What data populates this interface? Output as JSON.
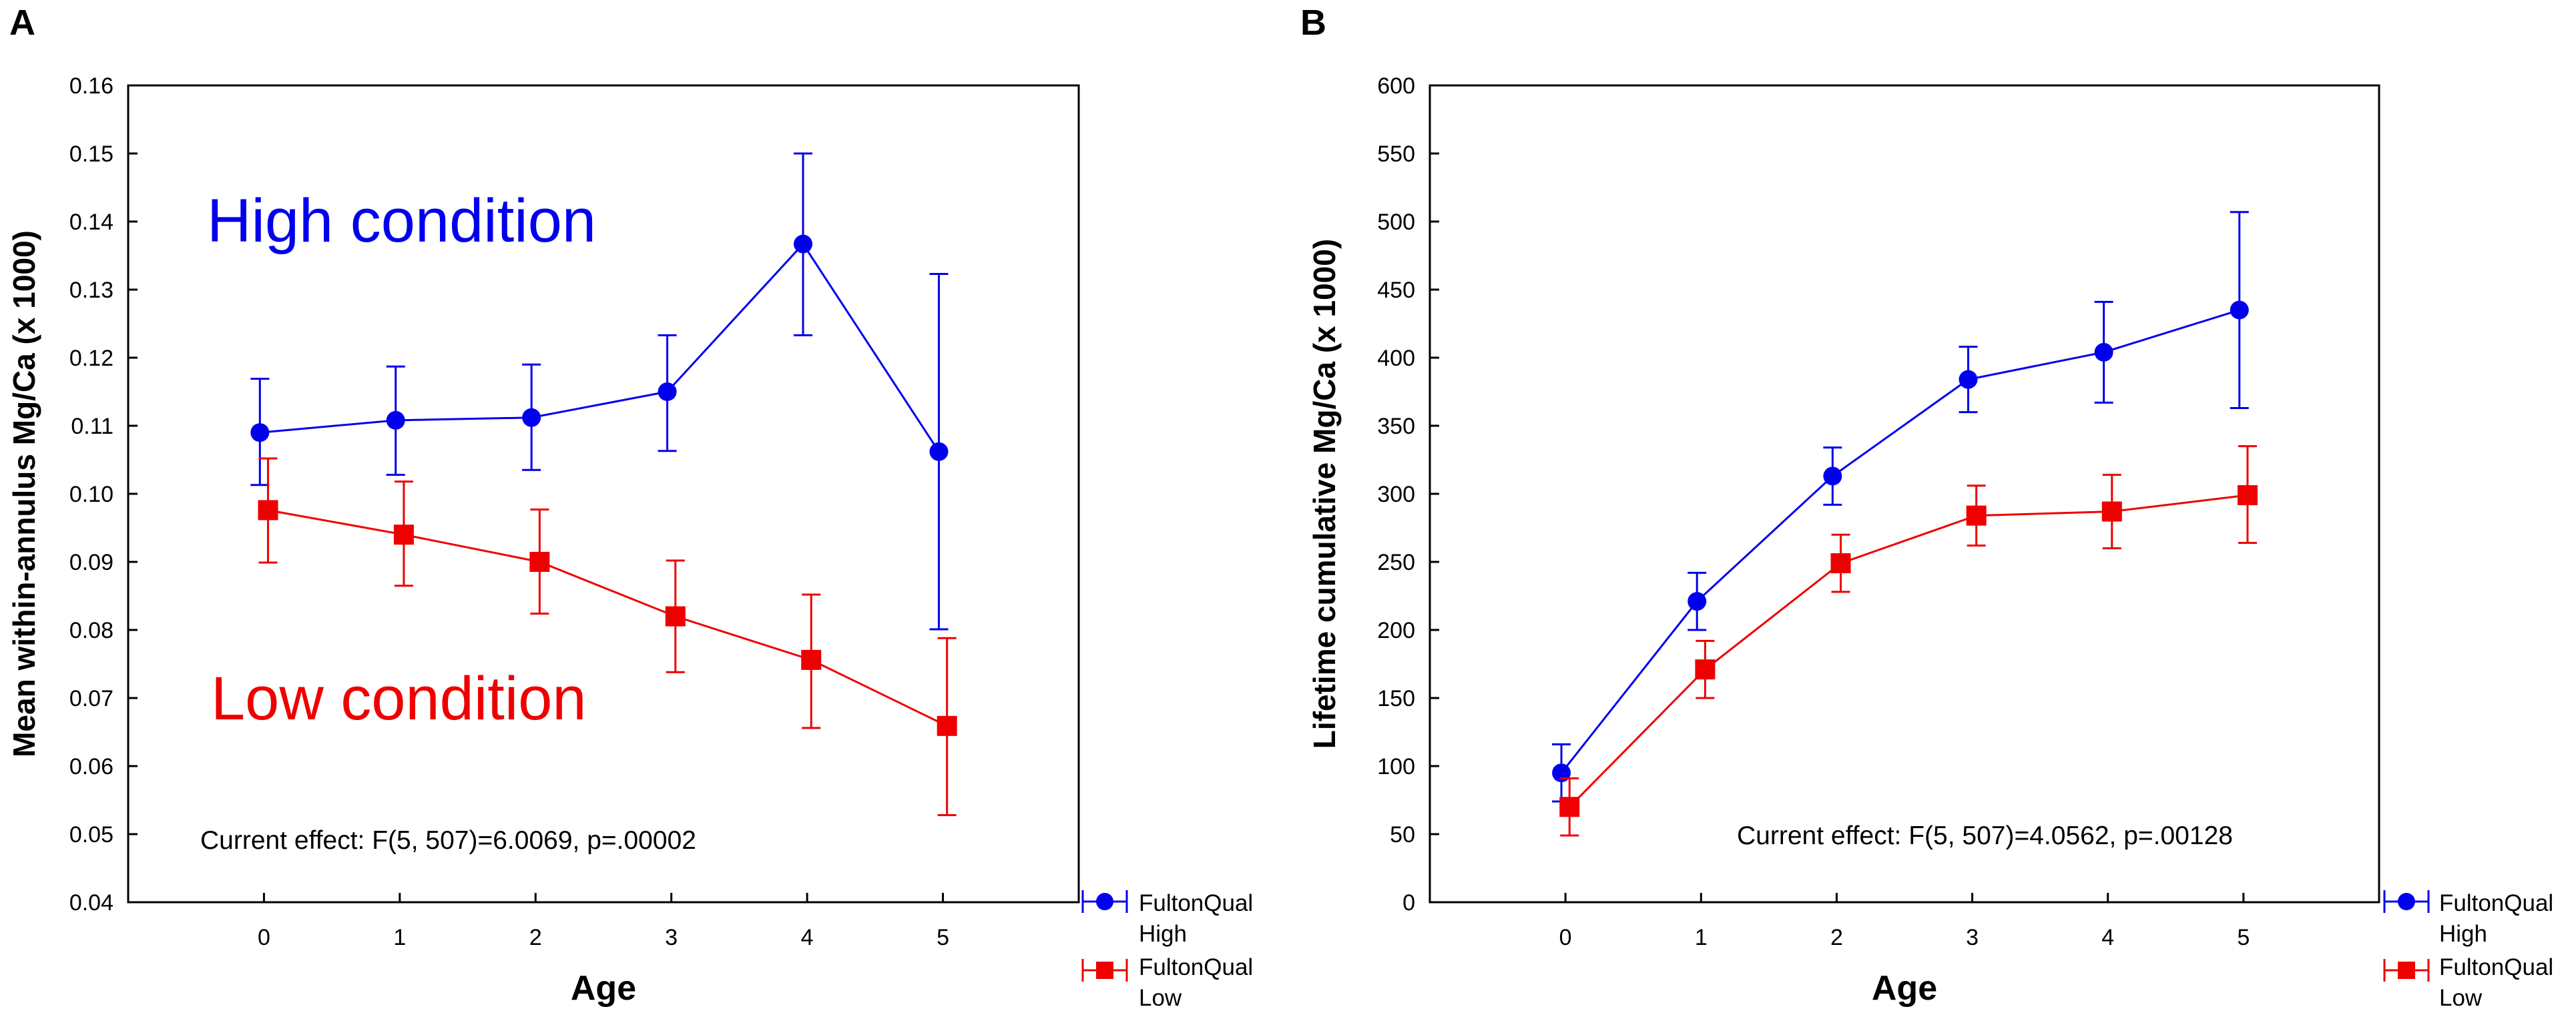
{
  "panels": [
    {
      "panel_label": "A",
      "annotations": {
        "high": "High condition",
        "low": "Low condition"
      },
      "effect_text": "Current effect: F(5, 507)=6.0069, p=.00002",
      "legend": [
        {
          "line1": "FultonQual",
          "line2": "High"
        },
        {
          "line1": "FultonQual",
          "line2": "Low"
        }
      ]
    },
    {
      "panel_label": "B",
      "effect_text": "Current effect: F(5, 507)=4.0562, p=.00128",
      "legend": [
        {
          "line1": "FultonQual",
          "line2": "High"
        },
        {
          "line1": "FultonQual",
          "line2": "Low"
        }
      ]
    }
  ],
  "colors": {
    "high": "#0000ee",
    "low": "#ee0000",
    "axis": "#000000"
  },
  "chart_data": [
    {
      "type": "line",
      "title": "",
      "xlabel": "Age",
      "ylabel": "Mean within-annulus Mg/Ca (x 1000)",
      "categories": [
        "0",
        "1",
        "2",
        "3",
        "4",
        "5"
      ],
      "xlim": [
        -1,
        6
      ],
      "ylim": [
        0.04,
        0.16
      ],
      "yticks": [
        "0.04",
        "0.05",
        "0.06",
        "0.07",
        "0.08",
        "0.09",
        "0.10",
        "0.11",
        "0.12",
        "0.13",
        "0.14",
        "0.15",
        "0.16"
      ],
      "series": [
        {
          "name": "FultonQual High",
          "marker": "circle",
          "x": [
            -0.03,
            0.97,
            1.97,
            2.97,
            3.97,
            4.97
          ],
          "values": [
            0.109,
            0.1108,
            0.1112,
            0.115,
            0.1367,
            0.1062
          ],
          "err_low": [
            0.1013,
            0.1028,
            0.1035,
            0.1063,
            0.1233,
            0.0801
          ],
          "err_high": [
            0.1169,
            0.1187,
            0.119,
            0.1233,
            0.15,
            0.1323
          ]
        },
        {
          "name": "FultonQual Low",
          "marker": "square",
          "x": [
            0.03,
            1.03,
            2.03,
            3.03,
            4.03,
            5.03
          ],
          "values": [
            0.0976,
            0.094,
            0.09,
            0.082,
            0.0756,
            0.0659
          ],
          "err_low": [
            0.0899,
            0.0865,
            0.0824,
            0.0738,
            0.0656,
            0.0528
          ],
          "err_high": [
            0.1052,
            0.1018,
            0.0977,
            0.0902,
            0.0852,
            0.0788
          ]
        }
      ]
    },
    {
      "type": "line",
      "title": "",
      "xlabel": "Age",
      "ylabel": "Lifetime cumulative Mg/Ca (x 1000)",
      "categories": [
        "0",
        "1",
        "2",
        "3",
        "4",
        "5"
      ],
      "xlim": [
        -1,
        6
      ],
      "ylim": [
        0,
        600
      ],
      "yticks": [
        "0",
        "50",
        "100",
        "150",
        "200",
        "250",
        "300",
        "350",
        "400",
        "450",
        "500",
        "550",
        "600"
      ],
      "series": [
        {
          "name": "FultonQual High",
          "marker": "circle",
          "x": [
            -0.03,
            0.97,
            1.97,
            2.97,
            3.97,
            4.97
          ],
          "values": [
            95,
            221,
            313,
            384,
            404,
            435
          ],
          "err_low": [
            74,
            200,
            292,
            360,
            367,
            363
          ],
          "err_high": [
            116,
            242,
            334,
            408,
            441,
            507
          ]
        },
        {
          "name": "FultonQual Low",
          "marker": "square",
          "x": [
            0.03,
            1.03,
            2.03,
            3.03,
            4.03,
            5.03
          ],
          "values": [
            70,
            171,
            249,
            284,
            287,
            299
          ],
          "err_low": [
            49,
            150,
            228,
            262,
            260,
            264
          ],
          "err_high": [
            91,
            192,
            270,
            306,
            314,
            335
          ]
        }
      ]
    }
  ]
}
